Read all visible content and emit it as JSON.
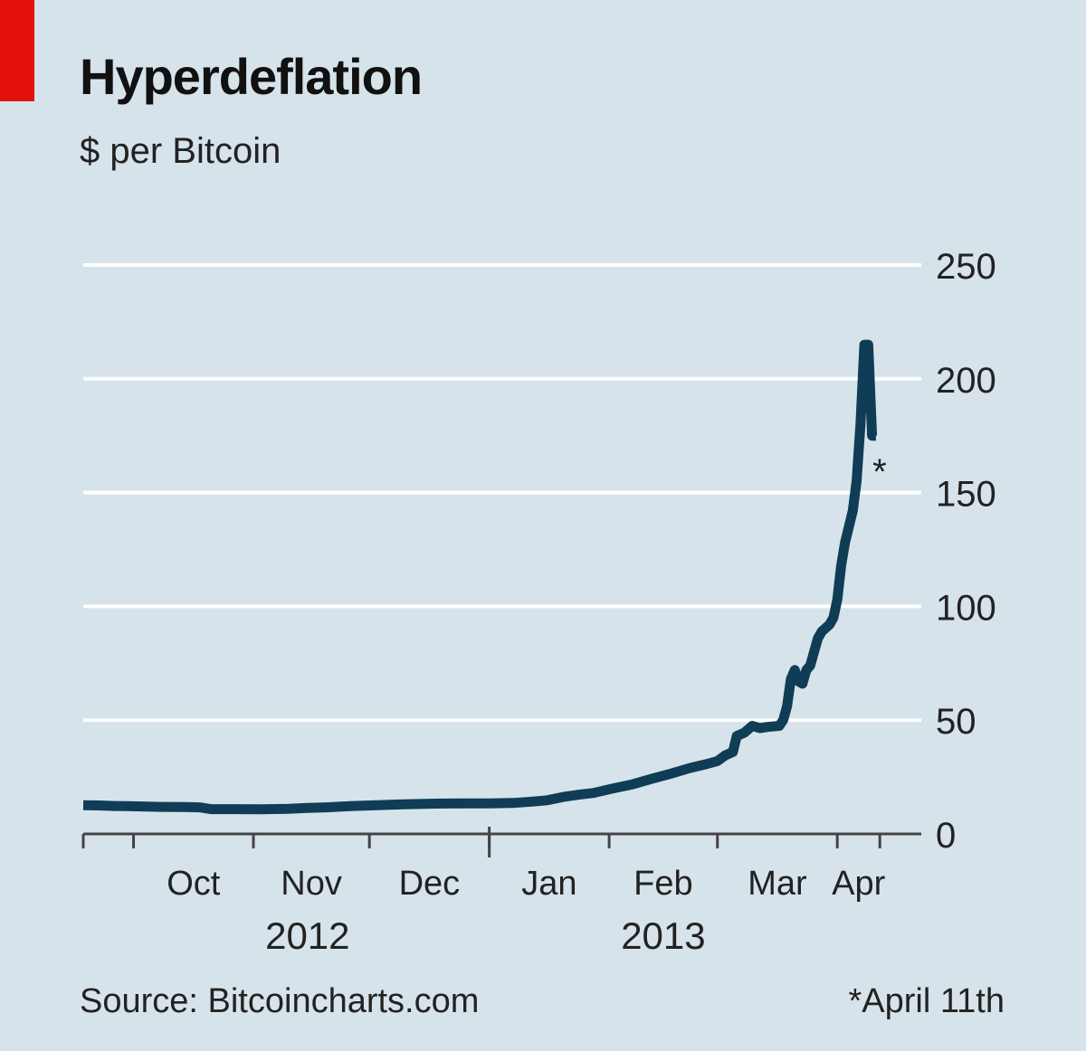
{
  "header": {
    "title": "Hyperdeflation",
    "subtitle": "$ per Bitcoin"
  },
  "footer": {
    "source": "Source: Bitcoincharts.com",
    "footnote": "*April 11th"
  },
  "colors": {
    "background": "#d7e3ea",
    "line": "#0f3d56",
    "gridline": "#ffffff",
    "accent_tab": "#e3120b",
    "axis": "#444444"
  },
  "chart_data": {
    "type": "line",
    "title": "Hyperdeflation",
    "ylabel": "$ per Bitcoin",
    "ylim": [
      0,
      250
    ],
    "yticks": [
      0,
      50,
      100,
      150,
      200,
      250
    ],
    "y_axis_side": "right",
    "grid": true,
    "xlim": [
      "2012-09-18",
      "2013-04-15"
    ],
    "month_ticks": [
      {
        "label": "Oct",
        "start": "2012-10-01",
        "end": "2012-11-01"
      },
      {
        "label": "Nov",
        "start": "2012-11-01",
        "end": "2012-12-01"
      },
      {
        "label": "Dec",
        "start": "2012-12-01",
        "end": "2013-01-01"
      },
      {
        "label": "Jan",
        "start": "2013-01-01",
        "end": "2013-02-01"
      },
      {
        "label": "Feb",
        "start": "2013-02-01",
        "end": "2013-03-01"
      },
      {
        "label": "Mar",
        "start": "2013-03-01",
        "end": "2013-04-01"
      },
      {
        "label": "Apr",
        "start": "2013-04-01",
        "end": "2013-04-12"
      }
    ],
    "year_labels": [
      {
        "label": "2012",
        "center": "2012-11-15"
      },
      {
        "label": "2013",
        "center": "2013-02-15"
      }
    ],
    "year_boundary": "2013-01-01",
    "annotation": {
      "text": "*",
      "date": "2013-04-11",
      "value": 165
    },
    "series": [
      {
        "points": [
          [
            "2012-09-18",
            12.6
          ],
          [
            "2012-09-22",
            12.5
          ],
          [
            "2012-09-26",
            12.3
          ],
          [
            "2012-09-29",
            12.2
          ],
          [
            "2012-10-03",
            12.1
          ],
          [
            "2012-10-08",
            11.9
          ],
          [
            "2012-10-14",
            11.8
          ],
          [
            "2012-10-18",
            11.7
          ],
          [
            "2012-10-21",
            10.9
          ],
          [
            "2012-10-27",
            10.9
          ],
          [
            "2012-11-03",
            10.8
          ],
          [
            "2012-11-10",
            11.0
          ],
          [
            "2012-11-15",
            11.4
          ],
          [
            "2012-11-20",
            11.7
          ],
          [
            "2012-11-26",
            12.2
          ],
          [
            "2012-12-03",
            12.6
          ],
          [
            "2012-12-10",
            13.0
          ],
          [
            "2012-12-18",
            13.3
          ],
          [
            "2012-12-25",
            13.4
          ],
          [
            "2013-01-01",
            13.4
          ],
          [
            "2013-01-07",
            13.6
          ],
          [
            "2013-01-12",
            14.2
          ],
          [
            "2013-01-16",
            14.8
          ],
          [
            "2013-01-20",
            16.2
          ],
          [
            "2013-01-24",
            17.2
          ],
          [
            "2013-01-28",
            18.0
          ],
          [
            "2013-02-02",
            20.0
          ],
          [
            "2013-02-07",
            21.8
          ],
          [
            "2013-02-12",
            24.2
          ],
          [
            "2013-02-17",
            26.5
          ],
          [
            "2013-02-22",
            29.0
          ],
          [
            "2013-02-26",
            30.6
          ],
          [
            "2013-03-01",
            32.0
          ],
          [
            "2013-03-03",
            34.5
          ],
          [
            "2013-03-05",
            36.0
          ],
          [
            "2013-03-06",
            43.0
          ],
          [
            "2013-03-08",
            44.5
          ],
          [
            "2013-03-10",
            47.5
          ],
          [
            "2013-03-12",
            46.5
          ],
          [
            "2013-03-14",
            47.0
          ],
          [
            "2013-03-17",
            47.5
          ],
          [
            "2013-03-18",
            50.0
          ],
          [
            "2013-03-19",
            56.0
          ],
          [
            "2013-03-20",
            68.0
          ],
          [
            "2013-03-21",
            72.0
          ],
          [
            "2013-03-22",
            67.0
          ],
          [
            "2013-03-23",
            66.0
          ],
          [
            "2013-03-24",
            72.0
          ],
          [
            "2013-03-25",
            74.0
          ],
          [
            "2013-03-26",
            80.0
          ],
          [
            "2013-03-27",
            86.0
          ],
          [
            "2013-03-28",
            89.0
          ],
          [
            "2013-03-30",
            92.0
          ],
          [
            "2013-03-31",
            95.0
          ],
          [
            "2013-04-01",
            103.0
          ],
          [
            "2013-04-02",
            118.0
          ],
          [
            "2013-04-03",
            128.0
          ],
          [
            "2013-04-04",
            135.0
          ],
          [
            "2013-04-05",
            142.0
          ],
          [
            "2013-04-06",
            155.0
          ],
          [
            "2013-04-07",
            180.0
          ],
          [
            "2013-04-08",
            215.0
          ],
          [
            "2013-04-09",
            215.0
          ],
          [
            "2013-04-10",
            175.0
          ],
          [
            "2013-04-11",
            175.0
          ]
        ]
      }
    ]
  }
}
